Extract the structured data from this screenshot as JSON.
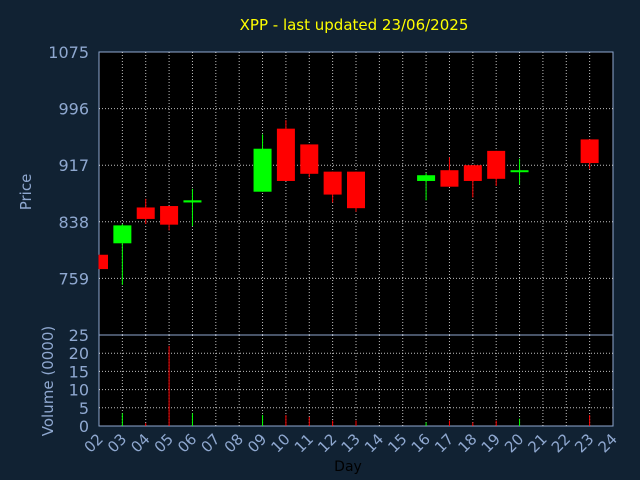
{
  "chart_data": [
    {
      "type": "candlestick",
      "title": "XPP - last updated 23/06/2025",
      "ylabel": "Price",
      "ylim": [
        680,
        1075
      ],
      "yticks": [
        759,
        838,
        917,
        996,
        1075
      ],
      "grid": true,
      "up_color": "#00ff00",
      "down_color": "#ff0000",
      "categories": [
        "02",
        "03",
        "04",
        "05",
        "06",
        "07",
        "08",
        "09",
        "10",
        "11",
        "12",
        "13",
        "14",
        "15",
        "16",
        "17",
        "18",
        "19",
        "20",
        "21",
        "22",
        "23",
        "24"
      ],
      "candles": [
        {
          "day": 0,
          "open": 792,
          "close": 772,
          "high": 792,
          "low": 772
        },
        {
          "day": 1,
          "open": 808,
          "close": 833,
          "high": 835,
          "low": 750
        },
        {
          "day": 2,
          "open": 858,
          "close": 842,
          "high": 870,
          "low": 835
        },
        {
          "day": 3,
          "open": 860,
          "close": 834,
          "high": 860,
          "low": 826
        },
        {
          "day": 4,
          "open": 865,
          "close": 868,
          "high": 884,
          "low": 832
        },
        {
          "day": 7,
          "open": 880,
          "close": 940,
          "high": 960,
          "low": 880
        },
        {
          "day": 8,
          "open": 968,
          "close": 895,
          "high": 980,
          "low": 895
        },
        {
          "day": 9,
          "open": 946,
          "close": 905,
          "high": 946,
          "low": 900
        },
        {
          "day": 10,
          "open": 908,
          "close": 876,
          "high": 908,
          "low": 865
        },
        {
          "day": 11,
          "open": 908,
          "close": 857,
          "high": 908,
          "low": 852
        },
        {
          "day": 14,
          "open": 895,
          "close": 903,
          "high": 906,
          "low": 868
        },
        {
          "day": 15,
          "open": 910,
          "close": 887,
          "high": 928,
          "low": 887
        },
        {
          "day": 16,
          "open": 917,
          "close": 895,
          "high": 917,
          "low": 872
        },
        {
          "day": 17,
          "open": 937,
          "close": 898,
          "high": 937,
          "low": 888
        },
        {
          "day": 18,
          "open": 908,
          "close": 910,
          "high": 926,
          "low": 890
        },
        {
          "day": 21,
          "open": 953,
          "close": 920,
          "high": 953,
          "low": 912
        }
      ]
    },
    {
      "type": "bar",
      "ylabel": "Volume (0000)",
      "ylim": [
        0,
        25
      ],
      "yticks": [
        0,
        5,
        10,
        15,
        20,
        25
      ],
      "xlabel": "Day",
      "bars": [
        {
          "day": 1,
          "value": 3.5,
          "up": true
        },
        {
          "day": 2,
          "value": 0.8,
          "up": false
        },
        {
          "day": 3,
          "value": 22,
          "up": false
        },
        {
          "day": 4,
          "value": 3.5,
          "up": true
        },
        {
          "day": 7,
          "value": 3,
          "up": true
        },
        {
          "day": 8,
          "value": 3,
          "up": false
        },
        {
          "day": 9,
          "value": 2.5,
          "up": false
        },
        {
          "day": 10,
          "value": 1.5,
          "up": false
        },
        {
          "day": 11,
          "value": 1.5,
          "up": false
        },
        {
          "day": 14,
          "value": 1,
          "up": true
        },
        {
          "day": 15,
          "value": 1.5,
          "up": false
        },
        {
          "day": 16,
          "value": 1,
          "up": false
        },
        {
          "day": 17,
          "value": 1.5,
          "up": false
        },
        {
          "day": 18,
          "value": 2,
          "up": true
        },
        {
          "day": 21,
          "value": 3,
          "up": false
        }
      ]
    }
  ]
}
